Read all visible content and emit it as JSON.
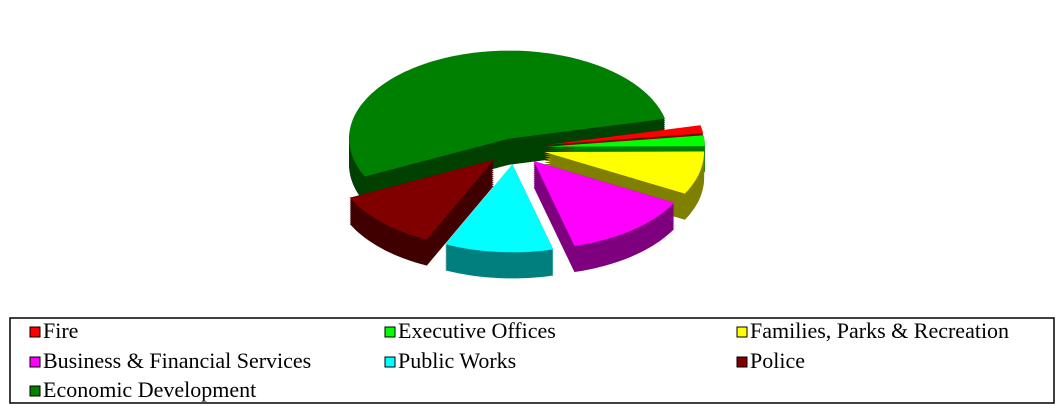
{
  "chart_data": {
    "type": "pie",
    "categories": [
      "Fire",
      "Executive Offices",
      "Families, Parks & Recreation",
      "Business & Financial Services",
      "Public Works",
      "Police",
      "Economic Development"
    ],
    "values": [
      1.5,
      2,
      8,
      13,
      11,
      11,
      53.5
    ],
    "colors": [
      "#ff0000",
      "#00ff00",
      "#ffff00",
      "#ff00ff",
      "#00ffff",
      "#800000",
      "#008000"
    ],
    "legend": "bottom"
  }
}
